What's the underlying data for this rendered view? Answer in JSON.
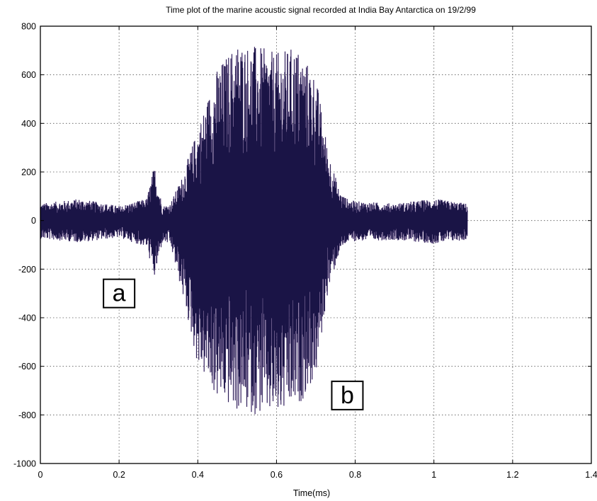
{
  "chart_data": {
    "type": "line",
    "title": "Time plot of the marine acoustic signal recorded at India Bay Antarctica on 19/2/99",
    "xlabel": "Time(ms)",
    "ylabel": "",
    "xlim": [
      0,
      1.4
    ],
    "ylim": [
      -1000,
      800
    ],
    "xticks": [
      0,
      0.2,
      0.4,
      0.6,
      0.8,
      1,
      1.2,
      1.4
    ],
    "xtick_labels": [
      "0",
      "0.2",
      "0.4",
      "0.6",
      "0.8",
      "1",
      "1.2",
      "1.4"
    ],
    "yticks": [
      800,
      600,
      400,
      200,
      0,
      -200,
      -400,
      -600,
      -800,
      -1000
    ],
    "ytick_labels": [
      "800",
      "600",
      "400",
      "200",
      "0",
      "-200",
      "-400",
      "-600",
      "-800",
      "-1000"
    ],
    "grid": true,
    "series_color": "#1a1446",
    "series_edge_color": "#a070c0",
    "signal_duration": 1.085,
    "envelope": {
      "x": [
        0,
        0.1,
        0.2,
        0.27,
        0.29,
        0.31,
        0.33,
        0.36,
        0.4,
        0.45,
        0.5,
        0.55,
        0.6,
        0.65,
        0.7,
        0.73,
        0.76,
        0.78,
        0.8,
        0.9,
        1.0,
        1.085
      ],
      "upper": [
        70,
        90,
        60,
        90,
        230,
        60,
        70,
        180,
        380,
        630,
        740,
        720,
        690,
        720,
        600,
        300,
        120,
        90,
        80,
        70,
        90,
        70
      ],
      "lower": [
        -75,
        -90,
        -70,
        -110,
        -240,
        -90,
        -100,
        -300,
        -600,
        -740,
        -790,
        -800,
        -820,
        -780,
        -650,
        -300,
        -130,
        -90,
        -85,
        -80,
        -95,
        -80
      ]
    },
    "annotations": [
      {
        "label": "a",
        "x": 0.2,
        "y": -300
      },
      {
        "label": "b",
        "x": 0.78,
        "y": -720
      }
    ]
  }
}
